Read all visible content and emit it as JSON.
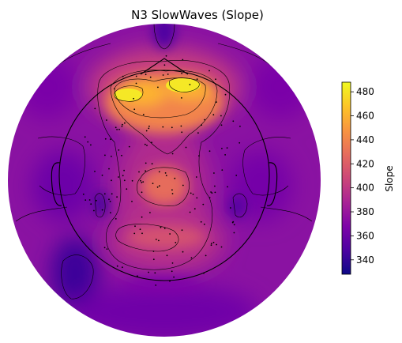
{
  "chart_data": {
    "type": "heatmap",
    "title": "N3 SlowWaves (Slope)",
    "colorbar": {
      "label": "Slope",
      "ticks": [
        480,
        460,
        440,
        420,
        400,
        380,
        360,
        340
      ],
      "range": [
        328,
        488
      ],
      "colormap": "plasma"
    },
    "contour_levels": [
      360,
      380,
      400,
      420,
      440,
      460,
      480
    ],
    "grid": false
  }
}
